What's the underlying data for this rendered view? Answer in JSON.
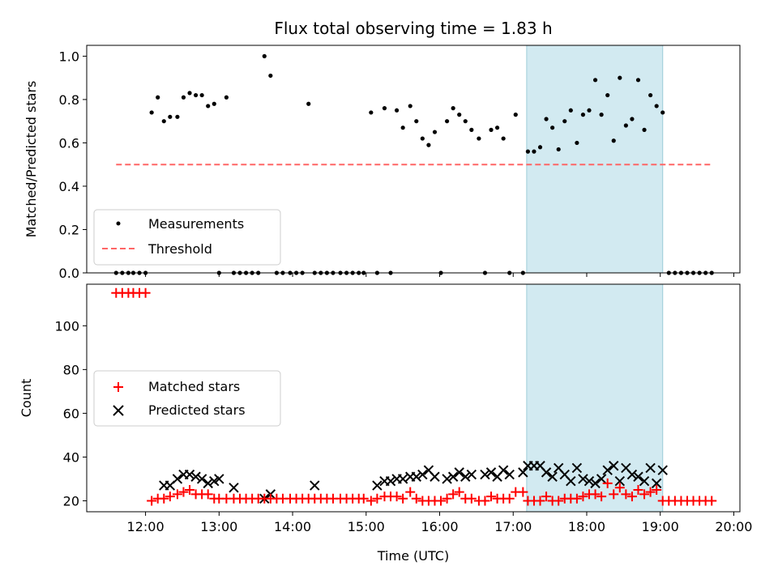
{
  "chart_data": {
    "title": "Flux total observing time = 1.83 h",
    "xlabel": "Time (UTC)",
    "x_ticks": [
      "12:00",
      "13:00",
      "14:00",
      "15:00",
      "16:00",
      "17:00",
      "18:00",
      "19:00",
      "20:00"
    ],
    "x_range": [
      "11:12",
      "20:05"
    ],
    "highlight_span": [
      "17:11",
      "19:02"
    ],
    "colors": {
      "highlight": "#add8e6",
      "measurements": "#000000",
      "threshold": "#ff6666",
      "matched": "#ff0000",
      "predicted": "#000000"
    },
    "panels": [
      {
        "type": "scatter",
        "ylabel": "Matched/Predicted stars",
        "ylim": [
          0,
          1.05
        ],
        "y_ticks": [
          "0.0",
          "0.2",
          "0.4",
          "0.6",
          "0.8",
          "1.0"
        ],
        "legend_position": "lower-left",
        "series": [
          {
            "name": "Measurements",
            "marker": "dot",
            "x": [
              "11:36",
              "11:41",
              "11:46",
              "11:50",
              "11:55",
              "12:00",
              "12:05",
              "12:10",
              "12:15",
              "12:20",
              "12:26",
              "12:31",
              "12:36",
              "12:41",
              "12:46",
              "12:51",
              "12:56",
              "13:00",
              "13:06",
              "13:12",
              "13:17",
              "13:22",
              "13:27",
              "13:32",
              "13:37",
              "13:42",
              "13:47",
              "13:52",
              "13:58",
              "14:03",
              "14:08",
              "14:13",
              "14:18",
              "14:23",
              "14:28",
              "14:33",
              "14:39",
              "14:44",
              "14:49",
              "14:54",
              "14:58",
              "15:04",
              "15:09",
              "15:15",
              "15:20",
              "15:25",
              "15:30",
              "15:36",
              "15:41",
              "15:46",
              "15:51",
              "15:56",
              "16:01",
              "16:06",
              "16:11",
              "16:16",
              "16:21",
              "16:26",
              "16:32",
              "16:37",
              "16:42",
              "16:47",
              "16:52",
              "16:57",
              "17:02",
              "17:08",
              "17:12",
              "17:17",
              "17:22",
              "17:27",
              "17:32",
              "17:37",
              "17:42",
              "17:47",
              "17:52",
              "17:57",
              "18:02",
              "18:07",
              "18:12",
              "18:17",
              "18:22",
              "18:27",
              "18:32",
              "18:37",
              "18:42",
              "18:47",
              "18:52",
              "18:57",
              "19:02",
              "19:07",
              "19:12",
              "19:17",
              "19:22",
              "19:27",
              "19:32",
              "19:37",
              "19:42"
            ],
            "y": [
              0,
              0,
              0,
              0,
              0,
              0,
              0.74,
              0.81,
              0.7,
              0.72,
              0.72,
              0.81,
              0.83,
              0.82,
              0.82,
              0.77,
              0.78,
              0,
              0.81,
              0,
              0,
              0,
              0,
              0,
              1.0,
              0.91,
              0,
              0,
              0,
              0,
              0,
              0.78,
              0,
              0,
              0,
              0,
              0,
              0,
              0,
              0,
              0,
              0.74,
              0,
              0.76,
              0,
              0.75,
              0.67,
              0.77,
              0.7,
              0.62,
              0.59,
              0.65,
              0,
              0.7,
              0.76,
              0.73,
              0.7,
              0.66,
              0.62,
              0,
              0.66,
              0.67,
              0.62,
              0,
              0.73,
              0,
              0.56,
              0.56,
              0.58,
              0.71,
              0.67,
              0.57,
              0.7,
              0.75,
              0.6,
              0.73,
              0.75,
              0.89,
              0.73,
              0.82,
              0.61,
              0.9,
              0.68,
              0.71,
              0.89,
              0.66,
              0.82,
              0.77,
              0.74,
              0,
              0,
              0,
              0,
              0,
              0,
              0,
              0
            ]
          },
          {
            "name": "Threshold",
            "line": "dashed",
            "x": [
              "11:36",
              "19:42"
            ],
            "y": [
              0.5,
              0.5
            ]
          }
        ]
      },
      {
        "type": "scatter",
        "ylabel": "Count",
        "ylim": [
          15,
          119
        ],
        "y_ticks": [
          "20",
          "40",
          "60",
          "80",
          "100"
        ],
        "legend_position": "center-left",
        "series": [
          {
            "name": "Matched stars",
            "marker": "plus",
            "x": [
              "11:36",
              "11:41",
              "11:46",
              "11:50",
              "11:55",
              "12:00",
              "12:05",
              "12:10",
              "12:15",
              "12:20",
              "12:26",
              "12:31",
              "12:36",
              "12:41",
              "12:46",
              "12:51",
              "12:56",
              "13:00",
              "13:06",
              "13:12",
              "13:17",
              "13:22",
              "13:27",
              "13:32",
              "13:37",
              "13:42",
              "13:47",
              "13:52",
              "13:58",
              "14:03",
              "14:08",
              "14:13",
              "14:18",
              "14:23",
              "14:28",
              "14:33",
              "14:39",
              "14:44",
              "14:49",
              "14:54",
              "14:58",
              "15:04",
              "15:09",
              "15:15",
              "15:20",
              "15:25",
              "15:30",
              "15:36",
              "15:41",
              "15:46",
              "15:51",
              "15:56",
              "16:01",
              "16:06",
              "16:11",
              "16:16",
              "16:21",
              "16:26",
              "16:32",
              "16:37",
              "16:42",
              "16:47",
              "16:52",
              "16:57",
              "17:02",
              "17:08",
              "17:12",
              "17:17",
              "17:22",
              "17:27",
              "17:32",
              "17:37",
              "17:42",
              "17:47",
              "17:52",
              "17:57",
              "18:02",
              "18:07",
              "18:12",
              "18:17",
              "18:22",
              "18:27",
              "18:32",
              "18:37",
              "18:42",
              "18:47",
              "18:52",
              "18:57",
              "19:02",
              "19:07",
              "19:12",
              "19:17",
              "19:22",
              "19:27",
              "19:32",
              "19:37",
              "19:42"
            ],
            "y": [
              115,
              115,
              115,
              115,
              115,
              115,
              20,
              21,
              21,
              22,
              23,
              24,
              25,
              23,
              23,
              23,
              21,
              21,
              21,
              21,
              21,
              21,
              21,
              21,
              21,
              21,
              21,
              21,
              21,
              21,
              21,
              21,
              21,
              21,
              21,
              21,
              21,
              21,
              21,
              21,
              21,
              20,
              21,
              22,
              22,
              22,
              21,
              24,
              21,
              20,
              20,
              20,
              20,
              21,
              23,
              24,
              21,
              21,
              20,
              20,
              22,
              21,
              21,
              21,
              24,
              24,
              20,
              20,
              20,
              22,
              20,
              20,
              21,
              21,
              21,
              22,
              23,
              23,
              22,
              28,
              23,
              26,
              23,
              22,
              25,
              23,
              24,
              25,
              20,
              20,
              20,
              20,
              20,
              20,
              20,
              20,
              20
            ]
          },
          {
            "name": "Predicted stars",
            "marker": "x",
            "x": [
              "12:15",
              "12:20",
              "12:26",
              "12:31",
              "12:36",
              "12:41",
              "12:46",
              "12:51",
              "12:56",
              "13:00",
              "13:12",
              "13:37",
              "13:42",
              "14:18",
              "15:09",
              "15:15",
              "15:20",
              "15:25",
              "15:30",
              "15:36",
              "15:41",
              "15:46",
              "15:51",
              "15:56",
              "16:06",
              "16:11",
              "16:16",
              "16:21",
              "16:26",
              "16:37",
              "16:42",
              "16:47",
              "16:52",
              "16:57",
              "17:08",
              "17:12",
              "17:17",
              "17:22",
              "17:27",
              "17:32",
              "17:37",
              "17:42",
              "17:47",
              "17:52",
              "17:57",
              "18:02",
              "18:07",
              "18:12",
              "18:17",
              "18:22",
              "18:27",
              "18:32",
              "18:37",
              "18:42",
              "18:47",
              "18:52",
              "18:57",
              "19:02"
            ],
            "y": [
              27,
              27,
              30,
              32,
              32,
              31,
              30,
              28,
              29,
              30,
              26,
              21,
              23,
              27,
              27,
              29,
              29,
              30,
              30,
              31,
              31,
              32,
              34,
              31,
              30,
              31,
              33,
              31,
              32,
              32,
              33,
              31,
              34,
              32,
              33,
              36,
              36,
              36,
              33,
              31,
              35,
              32,
              29,
              35,
              30,
              29,
              28,
              30,
              34,
              36,
              29,
              35,
              32,
              31,
              29,
              35,
              28,
              34
            ]
          }
        ]
      }
    ]
  }
}
